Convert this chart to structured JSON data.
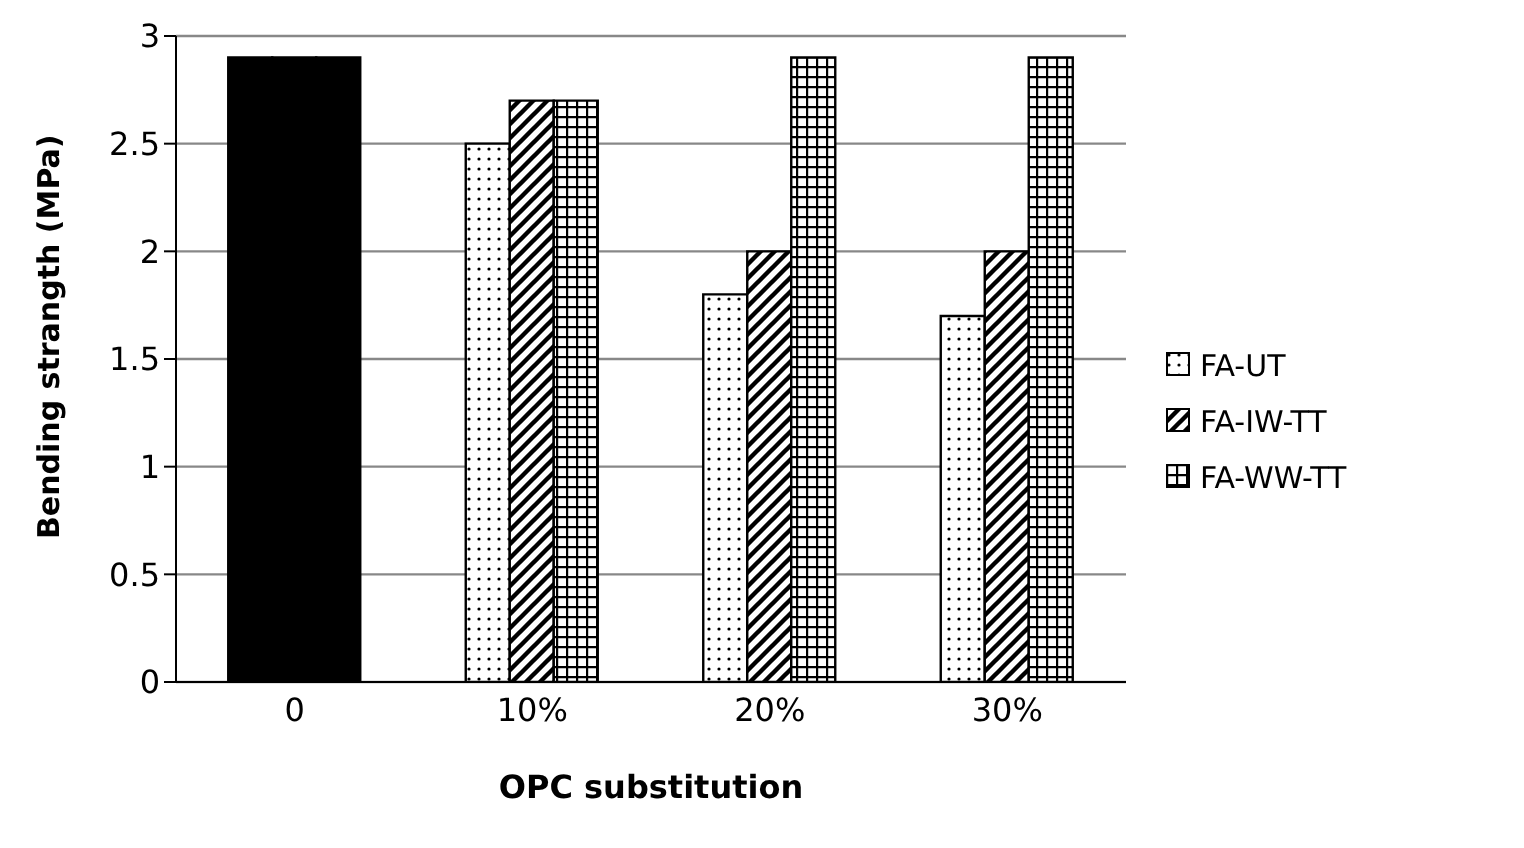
{
  "chart_data": {
    "type": "bar",
    "xlabel": "OPC substitution",
    "ylabel": "Bending strangth (MPa)",
    "categories": [
      "0",
      "10%",
      "20%",
      "30%"
    ],
    "series": [
      {
        "name": "FA-UT",
        "color": "#000000",
        "colors": [
          "#000000",
          null,
          null,
          null
        ],
        "values": [
          2.9,
          2.5,
          1.8,
          1.7
        ]
      },
      {
        "name": "FA-IW-TT",
        "color": "#000000",
        "colors": [
          "#000000",
          null,
          null,
          null
        ],
        "values": [
          2.9,
          2.7,
          2.0,
          2.0
        ]
      },
      {
        "name": "FA-WW-TT",
        "color": "#000000",
        "colors": [
          "#000000",
          null,
          null,
          null
        ],
        "values": [
          2.9,
          2.7,
          2.9,
          2.9
        ]
      }
    ],
    "ylim": [
      0,
      3
    ],
    "yticks": [
      0,
      0.5,
      1,
      1.5,
      2,
      2.5,
      3
    ],
    "grid": "y",
    "legend": "right"
  }
}
